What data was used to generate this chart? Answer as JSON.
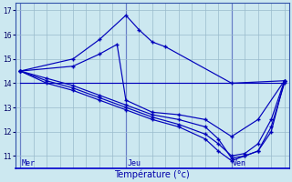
{
  "xlabel": "Température (°c)",
  "bg_color": "#cce8f0",
  "line_color": "#0000bb",
  "grid_color": "#99bbcc",
  "yticks": [
    11,
    12,
    13,
    14,
    15,
    16,
    17
  ],
  "ylim": [
    10.5,
    17.3
  ],
  "xlim": [
    -1,
    61
  ],
  "day_labels": [
    "Mer",
    "Jeu",
    "Ven"
  ],
  "day_positions": [
    0,
    24,
    48
  ],
  "series": [
    {
      "x": [
        0,
        60
      ],
      "y": [
        14.0,
        14.0
      ],
      "has_markers": false
    },
    {
      "x": [
        0,
        12,
        18,
        24,
        27,
        30,
        33,
        48,
        60
      ],
      "y": [
        14.5,
        15.0,
        15.8,
        16.8,
        16.2,
        15.7,
        15.5,
        14.0,
        14.1
      ],
      "has_markers": true
    },
    {
      "x": [
        0,
        12,
        18,
        22,
        24,
        30,
        36,
        42,
        48,
        54,
        60
      ],
      "y": [
        14.5,
        14.7,
        15.2,
        15.6,
        13.3,
        12.8,
        12.7,
        12.5,
        11.8,
        12.5,
        14.1
      ],
      "has_markers": true
    },
    {
      "x": [
        0,
        6,
        12,
        18,
        24,
        30,
        36,
        42,
        45,
        48,
        51,
        54,
        57,
        60
      ],
      "y": [
        14.5,
        14.2,
        13.9,
        13.5,
        13.1,
        12.7,
        12.5,
        12.2,
        11.7,
        10.9,
        11.0,
        11.2,
        12.0,
        14.1
      ],
      "has_markers": true
    },
    {
      "x": [
        0,
        6,
        12,
        18,
        24,
        30,
        36,
        42,
        45,
        48,
        51,
        54,
        57,
        60
      ],
      "y": [
        14.5,
        14.0,
        13.7,
        13.3,
        12.9,
        12.5,
        12.2,
        11.7,
        11.2,
        10.8,
        11.0,
        11.2,
        12.2,
        14.0
      ],
      "has_markers": true
    },
    {
      "x": [
        0,
        6,
        12,
        18,
        24,
        30,
        36,
        42,
        45,
        48,
        51,
        54,
        57,
        60
      ],
      "y": [
        14.5,
        14.1,
        13.8,
        13.4,
        13.0,
        12.6,
        12.3,
        11.9,
        11.5,
        11.0,
        11.1,
        11.5,
        12.5,
        14.1
      ],
      "has_markers": true
    }
  ]
}
